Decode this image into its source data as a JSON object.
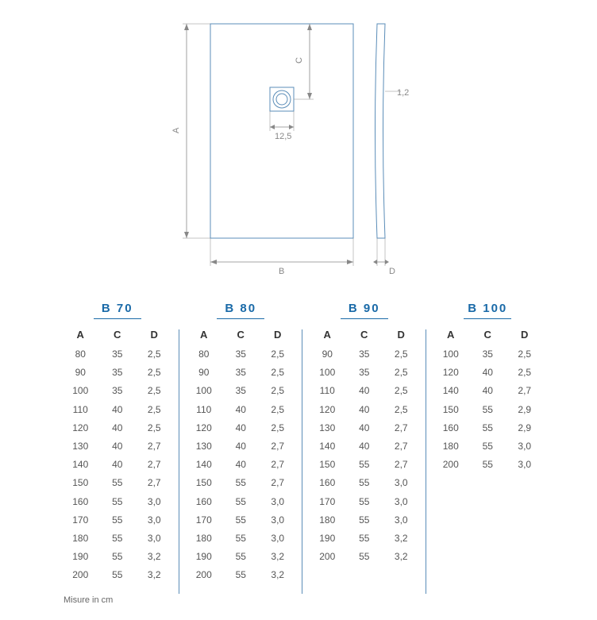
{
  "diagram": {
    "labels": {
      "A": "A",
      "B": "B",
      "C": "C",
      "D": "D"
    },
    "drain_width": "12,5",
    "profile_thickness": "1,2",
    "stroke_color": "#5b8db8",
    "label_color": "#888888",
    "line_width": 1
  },
  "tables": [
    {
      "title": "B  70",
      "columns": [
        "A",
        "C",
        "D"
      ],
      "rows": [
        [
          "80",
          "35",
          "2,5"
        ],
        [
          "90",
          "35",
          "2,5"
        ],
        [
          "100",
          "35",
          "2,5"
        ],
        [
          "110",
          "40",
          "2,5"
        ],
        [
          "120",
          "40",
          "2,5"
        ],
        [
          "130",
          "40",
          "2,7"
        ],
        [
          "140",
          "40",
          "2,7"
        ],
        [
          "150",
          "55",
          "2,7"
        ],
        [
          "160",
          "55",
          "3,0"
        ],
        [
          "170",
          "55",
          "3,0"
        ],
        [
          "180",
          "55",
          "3,0"
        ],
        [
          "190",
          "55",
          "3,2"
        ],
        [
          "200",
          "55",
          "3,2"
        ]
      ]
    },
    {
      "title": "B  80",
      "columns": [
        "A",
        "C",
        "D"
      ],
      "rows": [
        [
          "80",
          "35",
          "2,5"
        ],
        [
          "90",
          "35",
          "2,5"
        ],
        [
          "100",
          "35",
          "2,5"
        ],
        [
          "110",
          "40",
          "2,5"
        ],
        [
          "120",
          "40",
          "2,5"
        ],
        [
          "130",
          "40",
          "2,7"
        ],
        [
          "140",
          "40",
          "2,7"
        ],
        [
          "150",
          "55",
          "2,7"
        ],
        [
          "160",
          "55",
          "3,0"
        ],
        [
          "170",
          "55",
          "3,0"
        ],
        [
          "180",
          "55",
          "3,0"
        ],
        [
          "190",
          "55",
          "3,2"
        ],
        [
          "200",
          "55",
          "3,2"
        ]
      ]
    },
    {
      "title": "B  90",
      "columns": [
        "A",
        "C",
        "D"
      ],
      "rows": [
        [
          "90",
          "35",
          "2,5"
        ],
        [
          "100",
          "35",
          "2,5"
        ],
        [
          "110",
          "40",
          "2,5"
        ],
        [
          "120",
          "40",
          "2,5"
        ],
        [
          "130",
          "40",
          "2,7"
        ],
        [
          "140",
          "40",
          "2,7"
        ],
        [
          "150",
          "55",
          "2,7"
        ],
        [
          "160",
          "55",
          "3,0"
        ],
        [
          "170",
          "55",
          "3,0"
        ],
        [
          "180",
          "55",
          "3,0"
        ],
        [
          "190",
          "55",
          "3,2"
        ],
        [
          "200",
          "55",
          "3,2"
        ]
      ]
    },
    {
      "title": "B  100",
      "columns": [
        "A",
        "C",
        "D"
      ],
      "rows": [
        [
          "100",
          "35",
          "2,5"
        ],
        [
          "120",
          "40",
          "2,5"
        ],
        [
          "140",
          "40",
          "2,7"
        ],
        [
          "150",
          "55",
          "2,9"
        ],
        [
          "160",
          "55",
          "2,9"
        ],
        [
          "180",
          "55",
          "3,0"
        ],
        [
          "200",
          "55",
          "3,0"
        ]
      ]
    }
  ],
  "footnote": "Misure in cm",
  "styling": {
    "accent_color": "#1a6aa8",
    "divider_color": "#5b8db8",
    "text_color": "#555555",
    "header_fontsize": 15,
    "col_header_fontsize": 13,
    "cell_fontsize": 12,
    "background_color": "#ffffff"
  }
}
